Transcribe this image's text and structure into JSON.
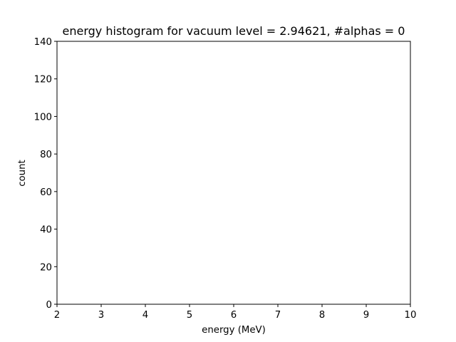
{
  "chart_data": {
    "type": "bar",
    "title": "energy histogram for vacuum level = 2.94621, #alphas = 0",
    "xlabel": "energy (MeV)",
    "ylabel": "count",
    "xlim": [
      2,
      10
    ],
    "ylim": [
      0,
      140
    ],
    "x_ticks": [
      "2",
      "3",
      "4",
      "5",
      "6",
      "7",
      "8",
      "9",
      "10"
    ],
    "y_ticks": [
      "0",
      "20",
      "40",
      "60",
      "80",
      "100",
      "120",
      "140"
    ],
    "series": [],
    "grid": false
  },
  "colors": {
    "background": "#ffffff",
    "axis": "#000000",
    "text": "#000000"
  }
}
